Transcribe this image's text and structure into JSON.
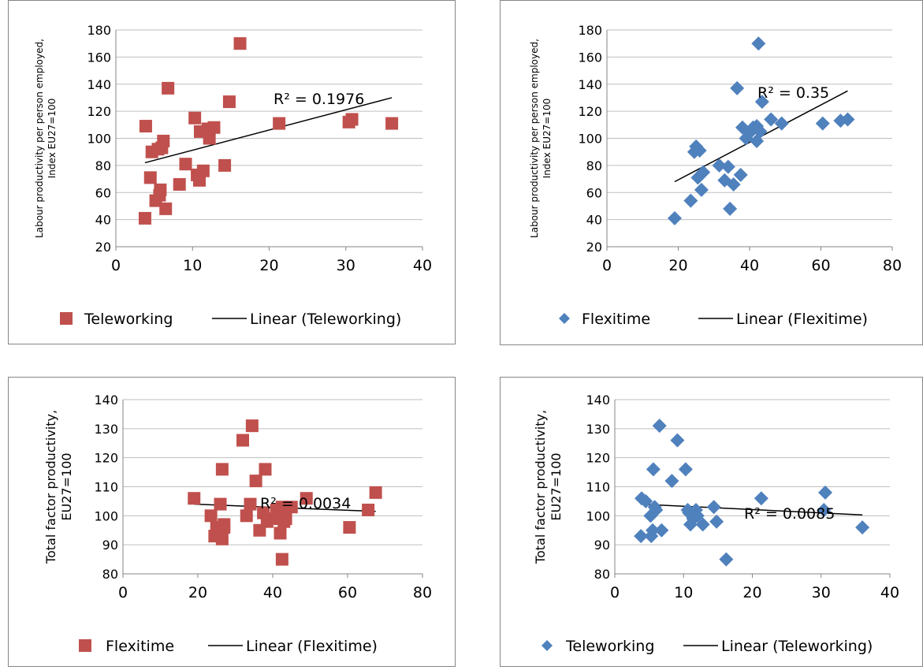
{
  "colors": {
    "teleworking_marker": "#c0504d",
    "flexitime_marker": "#4f81bd",
    "trendline": "#000000",
    "gridline": "#bfbfbf",
    "frame": "#868686"
  },
  "chart_data": [
    {
      "type": "scatter",
      "marker": "square",
      "ylabel": [
        "Labour productivity per person employed,",
        "Index EU27=100"
      ],
      "xlim": [
        0,
        40
      ],
      "xticks": [
        0,
        10,
        20,
        30,
        40
      ],
      "ylim": [
        20,
        180
      ],
      "yticks": [
        20,
        40,
        60,
        80,
        100,
        120,
        140,
        160,
        180
      ],
      "grid": true,
      "legend_position": "bottom",
      "series": [
        {
          "name": "Teleworking",
          "x": [
            3.8,
            3.9,
            4.5,
            4.7,
            5.2,
            5.5,
            5.7,
            5.8,
            6.0,
            6.2,
            6.5,
            6.8,
            8.3,
            9.1,
            10.3,
            10.6,
            10.9,
            11.0,
            11.4,
            12.0,
            12.2,
            12.8,
            14.2,
            14.8,
            16.2,
            21.3,
            30.4,
            30.8,
            36.0
          ],
          "y": [
            41,
            109,
            71,
            90,
            54,
            92,
            58,
            62,
            93,
            98,
            48,
            137,
            66,
            81,
            115,
            73,
            69,
            105,
            76,
            107,
            100,
            108,
            80,
            127,
            170,
            111,
            112,
            114,
            111
          ]
        }
      ],
      "trendline": {
        "name": "Linear (Teleworking)",
        "x": [
          3.8,
          36.0
        ],
        "y": [
          82,
          130
        ]
      },
      "annotation": "R² = 0.1976"
    },
    {
      "type": "scatter",
      "marker": "diamond",
      "ylabel": [
        "Labour productivity per person employed,",
        "Index EU27=100"
      ],
      "xlim": [
        0,
        80
      ],
      "xticks": [
        0,
        20,
        40,
        60,
        80
      ],
      "ylim": [
        20,
        180
      ],
      "yticks": [
        20,
        40,
        60,
        80,
        100,
        120,
        140,
        160,
        180
      ],
      "grid": true,
      "legend_position": "bottom",
      "series": [
        {
          "name": "Flexitime",
          "x": [
            19,
            23.5,
            24.5,
            25,
            25.5,
            26,
            26.5,
            27,
            31.5,
            33,
            34,
            34.5,
            35.5,
            36.5,
            37.5,
            38,
            39,
            40,
            41,
            42,
            42,
            42.5,
            43,
            43.5,
            46,
            49,
            60.5,
            65.5,
            67.5
          ],
          "y": [
            41,
            54,
            90,
            94,
            71,
            91,
            62,
            75,
            80,
            69,
            79,
            48,
            66,
            137,
            73,
            108,
            100,
            104,
            108,
            109,
            98,
            170,
            105,
            127,
            114,
            111,
            111,
            113,
            114
          ]
        }
      ],
      "trendline": {
        "name": "Linear (Flexitime)",
        "x": [
          19,
          67.5
        ],
        "y": [
          68,
          135
        ]
      },
      "annotation": "R² = 0.35"
    },
    {
      "type": "scatter",
      "marker": "square",
      "ylabel": [
        "Total factor productivity,",
        "EU27=100"
      ],
      "xlim": [
        0,
        80
      ],
      "xticks": [
        0,
        20,
        40,
        60,
        80
      ],
      "ylim": [
        80,
        140
      ],
      "yticks": [
        80,
        90,
        100,
        110,
        120,
        130,
        140
      ],
      "grid": true,
      "legend_position": "bottom",
      "series": [
        {
          "name": "Flexitime",
          "x": [
            19,
            23.5,
            24.5,
            25,
            26,
            26.5,
            26.5,
            27,
            27,
            32,
            33,
            34,
            34.5,
            35.5,
            36.5,
            37.5,
            38,
            38.5,
            40,
            41,
            42,
            42.5,
            42.5,
            43,
            43.5,
            45,
            49,
            60.5,
            65.5,
            67.5
          ],
          "y": [
            106,
            100,
            93,
            96,
            104,
            116,
            92,
            96,
            97,
            126,
            100,
            104,
            131,
            112,
            95,
            101,
            116,
            98,
            99,
            102,
            94,
            85,
            103,
            98,
            99,
            103,
            106,
            96,
            102,
            108
          ]
        }
      ],
      "trendline": {
        "name": "Linear (Flexitime)",
        "x": [
          19,
          67.5
        ],
        "y": [
          104,
          101.5
        ]
      },
      "annotation": "R² = 0.0034"
    },
    {
      "type": "scatter",
      "marker": "diamond",
      "ylabel": [
        "Total factor productivity,",
        "EU27=100"
      ],
      "xlim": [
        0,
        40
      ],
      "xticks": [
        0,
        10,
        20,
        30,
        40
      ],
      "ylim": [
        80,
        140
      ],
      "yticks": [
        80,
        90,
        100,
        110,
        120,
        130,
        140
      ],
      "grid": true,
      "legend_position": "bottom",
      "series": [
        {
          "name": "Teleworking",
          "x": [
            3.8,
            3.9,
            4.5,
            5.2,
            5.3,
            5.5,
            5.6,
            5.8,
            6.0,
            6.5,
            6.8,
            8.3,
            9.1,
            10.3,
            10.6,
            10.8,
            11.0,
            11.4,
            11.8,
            12.0,
            12.8,
            14.4,
            14.8,
            16.2,
            21.3,
            30.4,
            30.6,
            36.0
          ],
          "y": [
            93,
            106,
            105,
            100,
            93,
            95,
            116,
            103,
            102,
            131,
            95,
            112,
            126,
            116,
            102,
            101,
            97,
            99,
            102,
            100,
            97,
            103,
            98,
            85,
            106,
            102,
            108,
            96
          ]
        }
      ],
      "trendline": {
        "name": "Linear (Teleworking)",
        "x": [
          3.8,
          36.0
        ],
        "y": [
          104,
          100.3
        ]
      },
      "annotation": "R² = 0.0085"
    }
  ]
}
